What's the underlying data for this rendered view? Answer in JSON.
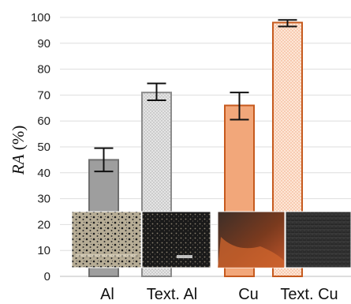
{
  "chart_data": {
    "type": "bar",
    "ylabel_italic": "RA",
    "ylabel_rest": " (%)",
    "ylim": [
      0,
      100
    ],
    "yticks": [
      0,
      10,
      20,
      30,
      40,
      50,
      60,
      70,
      80,
      90,
      100
    ],
    "grid": true,
    "categories": [
      "Al",
      "Text. Al",
      "Cu",
      "Text. Cu"
    ],
    "values": [
      45,
      71,
      66,
      98
    ],
    "error_low": [
      40.5,
      68,
      60.5,
      96.5
    ],
    "error_high": [
      49.5,
      74.5,
      71,
      99
    ],
    "bar_fills": [
      "#9e9e9e",
      "#dcdcdc",
      "#f2a77a",
      "#fcdcc8"
    ],
    "bar_strokes": [
      "#6f6f6f",
      "#8c8c8c",
      "#c65a1e",
      "#c65a1e"
    ],
    "bar_patterns": [
      "solid",
      "dotted",
      "solid",
      "dotted"
    ],
    "inset_photos": [
      "al-surface-photo",
      "textured-al-surface-photo",
      "cu-surface-photo",
      "textured-cu-surface-photo"
    ]
  }
}
